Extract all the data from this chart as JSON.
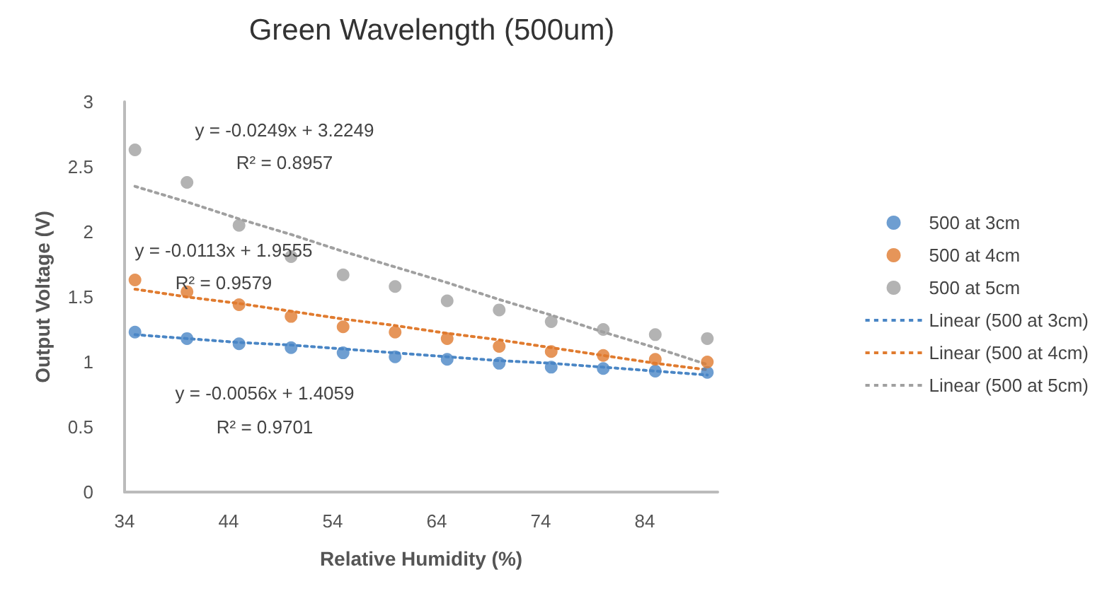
{
  "chart_data": {
    "type": "scatter",
    "title": "Green Wavelength (500um)",
    "xlabel": "Relative Humidity (%)",
    "ylabel": "Output Voltage (V)",
    "x": [
      35,
      40,
      45,
      50,
      55,
      60,
      65,
      70,
      75,
      80,
      85,
      90
    ],
    "series": [
      {
        "name": "500 at 3cm",
        "marker": "circle",
        "color": "#4a86c5",
        "values": [
          1.23,
          1.18,
          1.14,
          1.11,
          1.07,
          1.04,
          1.02,
          0.99,
          0.96,
          0.95,
          0.93,
          0.92
        ]
      },
      {
        "name": "500 at 4cm",
        "marker": "circle",
        "color": "#e07b2f",
        "values": [
          1.63,
          1.54,
          1.44,
          1.35,
          1.27,
          1.23,
          1.18,
          1.12,
          1.08,
          1.05,
          1.02,
          1.0
        ]
      },
      {
        "name": "500 at 5cm",
        "marker": "circle",
        "color": "#a0a0a0",
        "values": [
          2.63,
          2.38,
          2.05,
          1.81,
          1.67,
          1.58,
          1.47,
          1.4,
          1.31,
          1.25,
          1.21,
          1.18
        ]
      },
      {
        "name": "Linear (500 at 3cm)",
        "type": "line",
        "line_style": "dotted",
        "marker": "none",
        "color": "#4a86c5",
        "values": [
          1.21,
          1.18,
          1.15,
          1.13,
          1.1,
          1.07,
          1.04,
          1.01,
          0.99,
          0.96,
          0.93,
          0.9
        ]
      },
      {
        "name": "Linear (500 at 4cm)",
        "type": "line",
        "line_style": "dotted",
        "marker": "none",
        "color": "#e07b2f",
        "values": [
          1.56,
          1.5,
          1.45,
          1.39,
          1.33,
          1.28,
          1.22,
          1.17,
          1.11,
          1.05,
          0.99,
          0.94
        ]
      },
      {
        "name": "Linear (500 at 5cm)",
        "type": "line",
        "line_style": "dotted",
        "marker": "none",
        "color": "#a0a0a0",
        "values": [
          2.35,
          2.23,
          2.1,
          1.98,
          1.85,
          1.73,
          1.61,
          1.48,
          1.36,
          1.23,
          1.11,
          0.98
        ]
      }
    ],
    "annotations": [
      "y = -0.0249x + 3.2249",
      "R² = 0.8957",
      "y = -0.0113x + 1.9555",
      "R² = 0.9579",
      "y = -0.0056x + 1.4059",
      "R² = 0.9701"
    ],
    "xlim": [
      34,
      91
    ],
    "xticks": [
      34,
      44,
      54,
      64,
      74,
      84
    ],
    "ylim": [
      0,
      3
    ],
    "yticks": [
      0,
      0.5,
      1,
      1.5,
      2,
      2.5,
      3
    ],
    "grid": false,
    "legend": "right"
  }
}
